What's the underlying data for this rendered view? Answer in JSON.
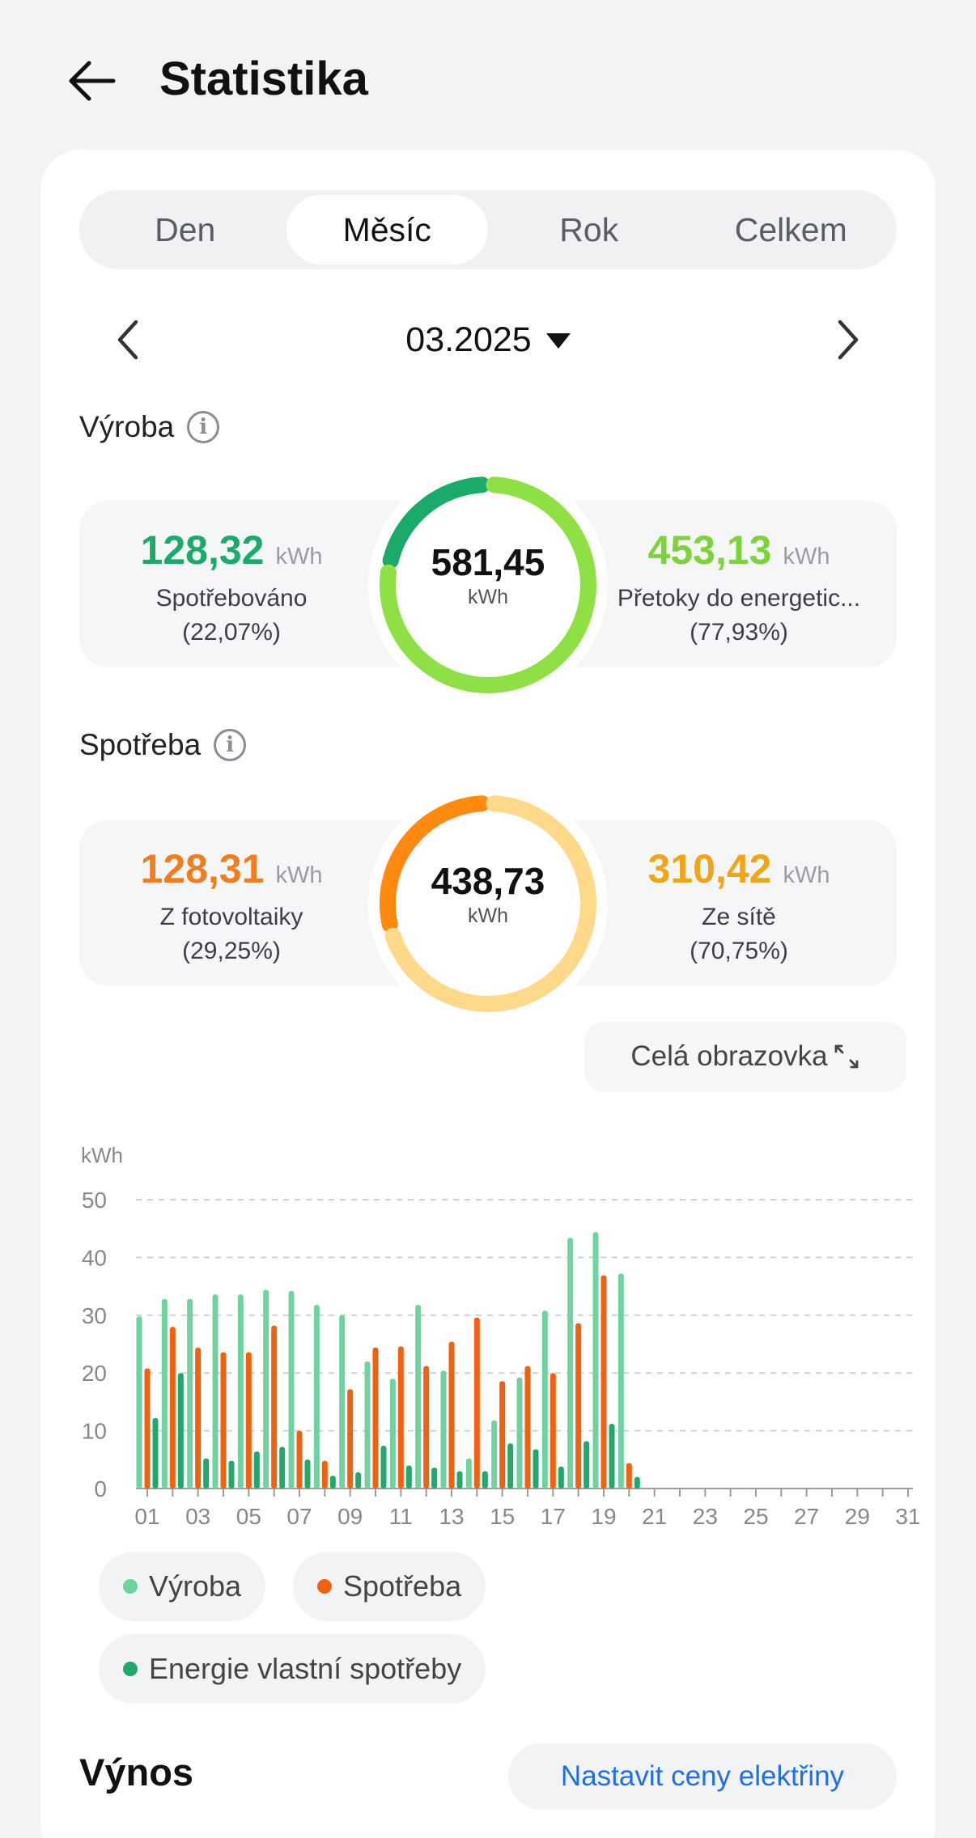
{
  "header": {
    "title": "Statistika"
  },
  "tabs": [
    {
      "label": "Den",
      "active": false
    },
    {
      "label": "Měsíc",
      "active": true
    },
    {
      "label": "Rok",
      "active": false
    },
    {
      "label": "Celkem",
      "active": false
    }
  ],
  "date": {
    "value": "03.2025"
  },
  "production": {
    "label": "Výroba",
    "total": "581,45",
    "total_unit": "kWh",
    "left": {
      "value": "128,32",
      "unit": "kWh",
      "label": "Spotřebováno",
      "pct": "(22,07%)",
      "color": "#1aab6b",
      "fraction": 0.2207
    },
    "right": {
      "value": "453,13",
      "unit": "kWh",
      "label": "Přetoky do energetic...",
      "pct": "(77,93%)",
      "color": "#7ed23a",
      "ring_color": "#8ee044",
      "fraction": 0.7793
    }
  },
  "consumption": {
    "label": "Spotřeba",
    "total": "438,73",
    "total_unit": "kWh",
    "left": {
      "value": "128,31",
      "unit": "kWh",
      "label": "Z fotovoltaiky",
      "pct": "(29,25%)",
      "color": "#f07d1e",
      "ring_color": "#ff8a0f",
      "fraction": 0.2925
    },
    "right": {
      "value": "310,42",
      "unit": "kWh",
      "label": "Ze sítě",
      "pct": "(70,75%)",
      "color": "#f0a418",
      "ring_color": "#ffd98a",
      "fraction": 0.7075
    }
  },
  "fullscreen_label": "Celá obrazovka",
  "chart_data": {
    "type": "bar",
    "ylabel": "kWh",
    "ylim": [
      0,
      50
    ],
    "yticks": [
      0,
      10,
      20,
      30,
      40,
      50
    ],
    "grid": true,
    "x": [
      "01",
      "02",
      "03",
      "04",
      "05",
      "06",
      "07",
      "08",
      "09",
      "10",
      "11",
      "12",
      "13",
      "14",
      "15",
      "16",
      "17",
      "18",
      "19",
      "20",
      "21",
      "22",
      "23",
      "24",
      "25",
      "26",
      "27",
      "28",
      "29",
      "30",
      "31"
    ],
    "xtick_labels": [
      "01",
      "03",
      "05",
      "07",
      "09",
      "11",
      "13",
      "15",
      "17",
      "19",
      "21",
      "23",
      "25",
      "27",
      "29",
      "31"
    ],
    "series": [
      {
        "name": "Výroba",
        "color": "#6fd3a0",
        "values": [
          29.8,
          32.8,
          32.8,
          33.6,
          33.6,
          34.4,
          34.2,
          31.8,
          30.0,
          22.0,
          19.0,
          31.8,
          20.4,
          5.2,
          11.8,
          19.2,
          30.8,
          43.4,
          44.4,
          37.2,
          null,
          null,
          null,
          null,
          null,
          null,
          null,
          null,
          null,
          null,
          null
        ]
      },
      {
        "name": "Spotřeba",
        "color": "#f0620f",
        "values": [
          20.8,
          28.0,
          24.4,
          23.6,
          23.6,
          28.2,
          10.0,
          4.8,
          17.2,
          24.4,
          24.6,
          21.2,
          25.4,
          29.6,
          18.6,
          21.2,
          20.0,
          28.6,
          36.9,
          4.4,
          null,
          null,
          null,
          null,
          null,
          null,
          null,
          null,
          null,
          null,
          null
        ]
      },
      {
        "name": "Energie vlastní spotřeby",
        "color": "#22a86a",
        "values": [
          12.2,
          20.0,
          5.2,
          4.8,
          6.4,
          7.2,
          5.0,
          2.2,
          2.8,
          7.4,
          4.0,
          3.6,
          3.0,
          3.0,
          7.8,
          6.8,
          3.8,
          8.2,
          11.2,
          2.0,
          null,
          null,
          null,
          null,
          null,
          null,
          null,
          null,
          null,
          null,
          null
        ]
      }
    ]
  },
  "vynos": {
    "title": "Výnos",
    "price_button": "Nastavit ceny elektřiny"
  }
}
